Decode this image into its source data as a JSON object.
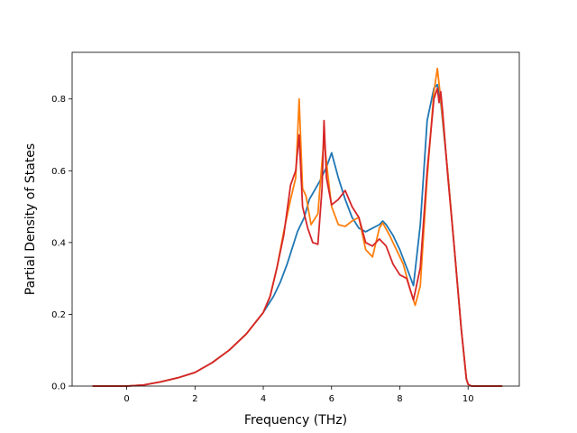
{
  "chart_data": {
    "type": "line",
    "title": "",
    "xlabel": "Frequency (THz)",
    "ylabel": "Partial Density of States",
    "xlim": [
      -1.6,
      11.5
    ],
    "ylim": [
      0.0,
      0.93
    ],
    "xticks": [
      0,
      2,
      4,
      6,
      8,
      10
    ],
    "yticks": [
      0.0,
      0.2,
      0.4,
      0.6,
      0.8
    ],
    "xtick_labels": [
      "0",
      "2",
      "4",
      "6",
      "8",
      "10"
    ],
    "ytick_labels": [
      "0.0",
      "0.2",
      "0.4",
      "0.6",
      "0.8"
    ],
    "grid": false,
    "legend": "none",
    "series": [
      {
        "color": "#1f77b4",
        "x": [
          -1.0,
          0.0,
          0.5,
          1.0,
          1.5,
          2.0,
          2.5,
          3.0,
          3.5,
          4.0,
          4.3,
          4.5,
          4.7,
          4.9,
          5.0,
          5.05,
          5.2,
          5.35,
          5.5,
          5.65,
          5.75,
          5.85,
          6.0,
          6.2,
          6.4,
          6.6,
          6.8,
          7.0,
          7.2,
          7.4,
          7.5,
          7.6,
          7.8,
          8.0,
          8.2,
          8.4,
          8.6,
          8.8,
          9.0,
          9.1,
          9.2,
          9.4,
          9.6,
          9.8,
          9.95,
          10.0,
          10.1,
          10.5,
          11.0
        ],
        "y": [
          0.0,
          0.0,
          0.003,
          0.012,
          0.023,
          0.038,
          0.065,
          0.1,
          0.145,
          0.205,
          0.25,
          0.29,
          0.34,
          0.4,
          0.43,
          0.44,
          0.47,
          0.52,
          0.545,
          0.57,
          0.59,
          0.61,
          0.65,
          0.58,
          0.52,
          0.47,
          0.44,
          0.43,
          0.44,
          0.45,
          0.46,
          0.45,
          0.42,
          0.38,
          0.33,
          0.28,
          0.45,
          0.74,
          0.83,
          0.84,
          0.79,
          0.6,
          0.38,
          0.16,
          0.02,
          0.005,
          0.0,
          0.0,
          0.0
        ]
      },
      {
        "color": "#ff7f0e",
        "x": [
          -1.0,
          0.0,
          0.5,
          1.0,
          1.5,
          2.0,
          2.5,
          3.0,
          3.5,
          4.0,
          4.2,
          4.4,
          4.6,
          4.8,
          4.95,
          5.05,
          5.15,
          5.25,
          5.4,
          5.6,
          5.7,
          5.78,
          5.9,
          6.0,
          6.2,
          6.4,
          6.6,
          6.8,
          7.0,
          7.2,
          7.4,
          7.5,
          7.7,
          7.9,
          8.1,
          8.3,
          8.45,
          8.6,
          8.8,
          9.0,
          9.1,
          9.2,
          9.4,
          9.6,
          9.8,
          9.95,
          10.0,
          10.1,
          10.5,
          11.0
        ],
        "y": [
          0.0,
          0.0,
          0.003,
          0.012,
          0.023,
          0.038,
          0.065,
          0.1,
          0.145,
          0.205,
          0.25,
          0.33,
          0.43,
          0.52,
          0.58,
          0.8,
          0.55,
          0.53,
          0.45,
          0.48,
          0.6,
          0.69,
          0.58,
          0.5,
          0.45,
          0.445,
          0.46,
          0.47,
          0.38,
          0.36,
          0.44,
          0.455,
          0.42,
          0.38,
          0.34,
          0.27,
          0.225,
          0.28,
          0.58,
          0.82,
          0.885,
          0.8,
          0.6,
          0.38,
          0.16,
          0.02,
          0.005,
          0.0,
          0.0,
          0.0
        ]
      },
      {
        "color": "#d62728",
        "x": [
          -1.0,
          0.0,
          0.5,
          1.0,
          1.5,
          2.0,
          2.5,
          3.0,
          3.5,
          4.0,
          4.2,
          4.4,
          4.6,
          4.8,
          4.95,
          5.05,
          5.15,
          5.3,
          5.45,
          5.6,
          5.72,
          5.78,
          5.85,
          6.0,
          6.2,
          6.4,
          6.6,
          6.8,
          7.0,
          7.2,
          7.4,
          7.6,
          7.8,
          8.0,
          8.2,
          8.4,
          8.6,
          8.8,
          9.0,
          9.1,
          9.15,
          9.2,
          9.25,
          9.4,
          9.6,
          9.8,
          9.95,
          10.0,
          10.1,
          10.5,
          11.0
        ],
        "y": [
          0.0,
          0.0,
          0.003,
          0.012,
          0.023,
          0.038,
          0.065,
          0.1,
          0.145,
          0.205,
          0.25,
          0.33,
          0.42,
          0.56,
          0.6,
          0.7,
          0.5,
          0.44,
          0.4,
          0.395,
          0.55,
          0.74,
          0.58,
          0.505,
          0.52,
          0.545,
          0.5,
          0.47,
          0.4,
          0.39,
          0.41,
          0.39,
          0.34,
          0.31,
          0.3,
          0.24,
          0.33,
          0.6,
          0.8,
          0.83,
          0.79,
          0.82,
          0.77,
          0.59,
          0.38,
          0.16,
          0.02,
          0.005,
          0.0,
          0.0,
          0.0
        ]
      }
    ]
  }
}
